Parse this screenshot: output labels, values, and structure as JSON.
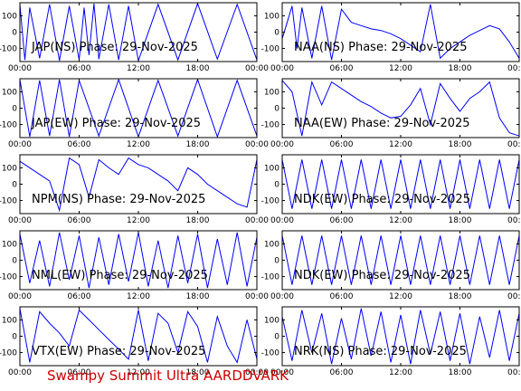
{
  "footer": {
    "text": "Swampy Summit Ultra AARDDVARK",
    "color": "#cc0000"
  },
  "trace_color": "#0000ff",
  "chart_data": [
    {
      "type": "line",
      "title": "JAP(NS) Phase: 29-Nov-2025",
      "xlim": [
        0,
        24
      ],
      "ylim": [
        -180,
        180
      ],
      "x_ticks": [
        "00:00",
        "06:00",
        "12:00",
        "18:00",
        "00:00"
      ],
      "y_ticks": [
        100,
        0,
        -100
      ],
      "series": [
        {
          "x": [
            0,
            0.5,
            1,
            2,
            3,
            4,
            5,
            6,
            6.5,
            7,
            7.5,
            8,
            9,
            10,
            11,
            12,
            14,
            16,
            18,
            20,
            22,
            24
          ],
          "values": [
            170,
            -170,
            150,
            -160,
            170,
            -175,
            160,
            -170,
            150,
            -140,
            175,
            -165,
            170,
            -170,
            160,
            -175,
            170,
            -170,
            175,
            -165,
            170,
            -170
          ]
        }
      ]
    },
    {
      "type": "line",
      "title": "NAA(NS) Phase: 29-Nov-2025",
      "xlim": [
        0,
        24
      ],
      "ylim": [
        -180,
        180
      ],
      "x_ticks": [
        "00:00",
        "06:00",
        "12:00",
        "18:00",
        "00:00"
      ],
      "y_ticks": [
        100,
        0,
        -100
      ],
      "series": [
        {
          "x": [
            0,
            0.5,
            1,
            1.5,
            2,
            3,
            4,
            5,
            6,
            7,
            8,
            9,
            10,
            11,
            12,
            13,
            14,
            15,
            16,
            17,
            18,
            19,
            20,
            21,
            22,
            23,
            24
          ],
          "values": [
            -40,
            60,
            160,
            -100,
            150,
            -160,
            160,
            -170,
            140,
            60,
            40,
            20,
            10,
            -10,
            -40,
            -80,
            -120,
            170,
            -160,
            -100,
            -60,
            -20,
            10,
            40,
            20,
            -60,
            -160
          ]
        }
      ]
    },
    {
      "type": "line",
      "title": "JAP(EW) Phase: 29-Nov-2025",
      "xlim": [
        0,
        24
      ],
      "ylim": [
        -180,
        180
      ],
      "x_ticks": [
        "00:00",
        "06:00",
        "12:00",
        "18:00",
        "00:00"
      ],
      "y_ticks": [
        100,
        0,
        -100
      ],
      "series": [
        {
          "x": [
            0,
            1,
            2,
            3,
            4,
            5,
            6,
            8,
            10,
            12,
            14,
            16,
            18,
            20,
            22,
            24
          ],
          "values": [
            175,
            -175,
            170,
            -170,
            175,
            -175,
            170,
            -170,
            175,
            -175,
            170,
            -170,
            175,
            -175,
            170,
            -170
          ]
        }
      ]
    },
    {
      "type": "line",
      "title": "NAA(EW) Phase: 29-Nov-2025",
      "xlim": [
        0,
        24
      ],
      "ylim": [
        -180,
        180
      ],
      "x_ticks": [
        "00:00",
        "06:00",
        "12:00",
        "18:00",
        "00:00"
      ],
      "y_ticks": [
        100,
        0,
        -100
      ],
      "series": [
        {
          "x": [
            0,
            1,
            2,
            3,
            4,
            5,
            6,
            7,
            8,
            9,
            10,
            11,
            12,
            13,
            14,
            15,
            16,
            17,
            18,
            19,
            20,
            21,
            22,
            23,
            24
          ],
          "values": [
            170,
            100,
            -170,
            160,
            20,
            160,
            120,
            80,
            40,
            10,
            -30,
            -60,
            -50,
            20,
            120,
            -100,
            150,
            60,
            -20,
            60,
            100,
            160,
            -60,
            -150,
            -170
          ]
        }
      ]
    },
    {
      "type": "line",
      "title": "NPM(NS) Phase: 29-Nov-2025",
      "xlim": [
        0,
        24
      ],
      "ylim": [
        -180,
        180
      ],
      "x_ticks": [
        "00:00",
        "06:00",
        "12:00",
        "18:00",
        "00:00"
      ],
      "y_ticks": [
        100,
        0,
        -100
      ],
      "series": [
        {
          "x": [
            0,
            1,
            2,
            3,
            4,
            5,
            6,
            7,
            8,
            9,
            10,
            11,
            12,
            13,
            14,
            15,
            16,
            17,
            18,
            19,
            20,
            21,
            22,
            23,
            24
          ],
          "values": [
            140,
            100,
            60,
            20,
            -160,
            160,
            120,
            -80,
            150,
            100,
            60,
            160,
            120,
            100,
            60,
            20,
            -40,
            100,
            60,
            0,
            -40,
            -80,
            -120,
            -140,
            150
          ]
        }
      ]
    },
    {
      "type": "line",
      "title": "NDK(EW) Phase: 29-Nov-2025",
      "xlim": [
        0,
        24
      ],
      "ylim": [
        -180,
        180
      ],
      "x_ticks": [
        "00:00",
        "06:00",
        "12:00",
        "18:00",
        "00:00"
      ],
      "y_ticks": [
        100,
        0,
        -100
      ],
      "series": [
        {
          "x": [
            0,
            1,
            2,
            3,
            4,
            5,
            6,
            7,
            8,
            9,
            10,
            11,
            12,
            13,
            14,
            15,
            16,
            17,
            18,
            19,
            20,
            21,
            22,
            23,
            24
          ],
          "values": [
            150,
            -150,
            150,
            -150,
            150,
            -150,
            150,
            -150,
            150,
            -150,
            150,
            -150,
            150,
            -150,
            150,
            -150,
            150,
            -150,
            150,
            -150,
            150,
            -150,
            150,
            -150,
            150
          ]
        }
      ]
    },
    {
      "type": "line",
      "title": "NML(EW) Phase: 29-Nov-2025",
      "xlim": [
        0,
        24
      ],
      "ylim": [
        -180,
        180
      ],
      "x_ticks": [
        "00:00",
        "06:00",
        "12:00",
        "18:00",
        "00:00"
      ],
      "y_ticks": [
        100,
        0,
        -100
      ],
      "series": [
        {
          "x": [
            0,
            1,
            2,
            3,
            4,
            5,
            6,
            7,
            8,
            9,
            10,
            11,
            12,
            13,
            14,
            15,
            16,
            17,
            18,
            19,
            20,
            21,
            22,
            23,
            24
          ],
          "values": [
            160,
            -140,
            120,
            -160,
            170,
            -120,
            150,
            -170,
            140,
            -150,
            160,
            -130,
            170,
            -160,
            120,
            -170,
            150,
            -140,
            160,
            -170,
            130,
            -150,
            170,
            -160,
            140
          ]
        }
      ]
    },
    {
      "type": "line",
      "title": "NDK(EW) Phase: 29-Nov-2025",
      "xlim": [
        0,
        24
      ],
      "ylim": [
        -180,
        180
      ],
      "x_ticks": [
        "00:00",
        "06:00",
        "12:00",
        "18:00",
        "00:00"
      ],
      "y_ticks": [
        100,
        0,
        -100
      ],
      "series": [
        {
          "x": [
            0,
            1,
            2,
            3,
            4,
            5,
            6,
            7,
            8,
            9,
            10,
            11,
            12,
            13,
            14,
            15,
            16,
            17,
            18,
            19,
            20,
            21,
            22,
            23,
            24
          ],
          "values": [
            150,
            -150,
            150,
            -150,
            150,
            -150,
            150,
            -150,
            150,
            -150,
            150,
            -150,
            150,
            -150,
            150,
            -150,
            150,
            -150,
            150,
            -150,
            150,
            -150,
            150,
            -150,
            150
          ]
        }
      ]
    },
    {
      "type": "line",
      "title": "VTX(EW) Phase: 29-Nov-2025",
      "xlim": [
        0,
        24
      ],
      "ylim": [
        -180,
        180
      ],
      "x_ticks": [
        "00:00",
        "06:00",
        "12:00",
        "18:00",
        "00:00"
      ],
      "y_ticks": [
        100,
        0,
        -100
      ],
      "series": [
        {
          "x": [
            0,
            1,
            2,
            3,
            4,
            5,
            6,
            7,
            8,
            9,
            10,
            11,
            12,
            13,
            14,
            15,
            16,
            17,
            18,
            19,
            20,
            21,
            22,
            23,
            24
          ],
          "values": [
            170,
            -160,
            150,
            80,
            20,
            -60,
            160,
            100,
            40,
            -20,
            -80,
            -140,
            160,
            -150,
            140,
            80,
            -100,
            150,
            60,
            -160,
            120,
            -60,
            -160,
            100,
            -140
          ]
        }
      ]
    },
    {
      "type": "line",
      "title": "NRK(NS) Phase: 29-Nov-2025",
      "xlim": [
        0,
        24
      ],
      "ylim": [
        -180,
        180
      ],
      "x_ticks": [
        "00:00",
        "06:00",
        "12:00",
        "18:00",
        "00:00"
      ],
      "y_ticks": [
        100,
        0,
        -100
      ],
      "series": [
        {
          "x": [
            0,
            1,
            2,
            3,
            4,
            5,
            6,
            7,
            8,
            9,
            10,
            11,
            12,
            13,
            14,
            15,
            16,
            17,
            18,
            19,
            20,
            21,
            22,
            23,
            24
          ],
          "values": [
            120,
            -150,
            160,
            -100,
            140,
            -170,
            110,
            -140,
            170,
            -120,
            150,
            -160,
            130,
            -170,
            160,
            -110,
            150,
            -150,
            140,
            -170,
            120,
            -130,
            160,
            -150,
            140
          ]
        }
      ]
    }
  ]
}
